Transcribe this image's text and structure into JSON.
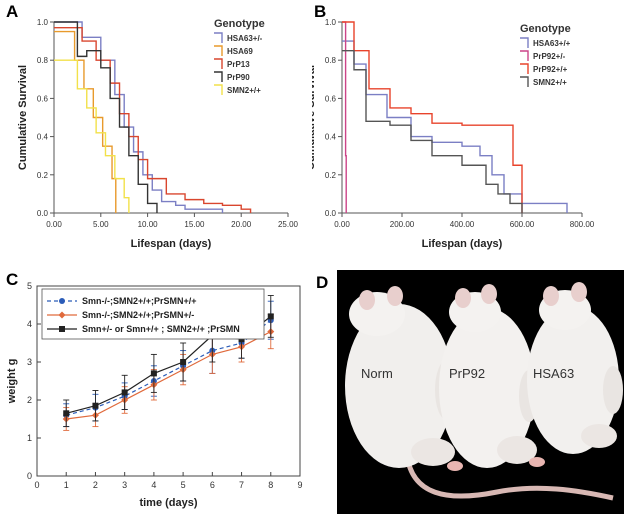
{
  "chart_data": [
    {
      "panel": "A",
      "type": "line",
      "step": true,
      "ylabel": "Cumulative Survival",
      "xlabel": "Lifespan (days)",
      "xlim": [
        0,
        25
      ],
      "ylim": [
        0,
        1.0
      ],
      "xticks": [
        "0.00",
        "5.00",
        "10.00",
        "15.00",
        "20.00",
        "25.00"
      ],
      "yticks": [
        "0.0",
        "0.2",
        "0.4",
        "0.6",
        "0.8",
        "1.0"
      ],
      "legend_title": "Genotype",
      "legend_position": "top-right",
      "series": [
        {
          "name": "HSA63+/-",
          "color": "#7b7fc4",
          "x": [
            0,
            1.8,
            3.0,
            5.0,
            6.5,
            7.5,
            8.5,
            9.5,
            10.5,
            11.5,
            13,
            14,
            18
          ],
          "y": [
            1.0,
            1.0,
            0.92,
            0.8,
            0.62,
            0.45,
            0.32,
            0.2,
            0.12,
            0.06,
            0.04,
            0.02,
            0.0
          ]
        },
        {
          "name": "HSA69",
          "color": "#e89a2c",
          "x": [
            0,
            1.2,
            2.2,
            3.2,
            4.2,
            5.2,
            6.2,
            6.6
          ],
          "y": [
            0.95,
            0.95,
            0.8,
            0.65,
            0.5,
            0.35,
            0.18,
            0.0
          ]
        },
        {
          "name": "PrP13",
          "color": "#d9462e",
          "x": [
            0,
            1.5,
            3,
            4.5,
            6,
            7,
            8,
            9,
            10,
            12,
            14,
            16,
            18,
            20,
            21
          ],
          "y": [
            0.97,
            0.97,
            0.9,
            0.8,
            0.68,
            0.52,
            0.4,
            0.28,
            0.18,
            0.1,
            0.07,
            0.05,
            0.04,
            0.02,
            0.0
          ]
        },
        {
          "name": "PrP90",
          "color": "#333333",
          "x": [
            0,
            1.5,
            2.5,
            3.5,
            5,
            6,
            7,
            8,
            9,
            10,
            11
          ],
          "y": [
            1.0,
            1.0,
            0.82,
            0.85,
            0.76,
            0.6,
            0.45,
            0.3,
            0.15,
            0.05,
            0.0
          ]
        },
        {
          "name": "SMN2+/+",
          "color": "#f2e14a",
          "x": [
            0,
            1.2,
            2.5,
            3.5,
            4.5,
            5.5,
            6.5,
            7.5,
            8
          ],
          "y": [
            0.8,
            0.8,
            0.65,
            0.55,
            0.42,
            0.3,
            0.18,
            0.08,
            0.0
          ]
        }
      ]
    },
    {
      "panel": "B",
      "type": "line",
      "step": true,
      "ylabel": "Cumulative Survival",
      "xlabel": "Lifespan (days)",
      "xlim": [
        0,
        800
      ],
      "ylim": [
        0,
        1.0
      ],
      "xticks": [
        "0.00",
        "200.00",
        "400.00",
        "600.00",
        "800.00"
      ],
      "yticks": [
        "0.0",
        "0.2",
        "0.4",
        "0.6",
        "0.8",
        "1.0"
      ],
      "legend_title": "Genotype",
      "legend_position": "top-right",
      "series": [
        {
          "name": "HSA63+/+",
          "color": "#7b7fc4",
          "x": [
            0,
            15,
            40,
            80,
            150,
            230,
            300,
            400,
            460,
            500,
            540,
            600,
            650,
            750
          ],
          "y": [
            0.9,
            0.9,
            0.78,
            0.62,
            0.5,
            0.4,
            0.37,
            0.35,
            0.3,
            0.2,
            0.1,
            0.05,
            0.05,
            0.0
          ]
        },
        {
          "name": "PrP92+/-",
          "color": "#cc4488",
          "x": [
            0,
            10,
            12,
            14
          ],
          "y": [
            1.0,
            1.0,
            0.3,
            0.0
          ]
        },
        {
          "name": "PrP92+/+",
          "color": "#e8432b",
          "x": [
            0,
            15,
            40,
            90,
            160,
            230,
            300,
            400,
            540,
            570,
            600
          ],
          "y": [
            1.0,
            1.0,
            0.85,
            0.65,
            0.55,
            0.52,
            0.47,
            0.46,
            0.46,
            0.25,
            0.0
          ]
        },
        {
          "name": "SMN2+/+",
          "color": "#555555",
          "x": [
            0,
            15,
            40,
            80,
            160,
            230,
            300,
            400,
            480,
            520,
            560,
            600
          ],
          "y": [
            0.85,
            0.85,
            0.75,
            0.48,
            0.46,
            0.38,
            0.3,
            0.25,
            0.15,
            0.1,
            0.05,
            0.0
          ]
        }
      ]
    },
    {
      "panel": "C",
      "type": "line",
      "ylabel": "weight g",
      "xlabel": "time (days)",
      "xlim": [
        0,
        9
      ],
      "ylim": [
        0,
        5
      ],
      "xticks": [
        "0",
        "1",
        "2",
        "3",
        "4",
        "5",
        "6",
        "7",
        "8",
        "9"
      ],
      "yticks": [
        "0",
        "1",
        "2",
        "3",
        "4",
        "5"
      ],
      "legend_position": "top-left",
      "series": [
        {
          "name": "Smn-/-;SMN2+/+;PrSMN+/+",
          "color": "#2b5cb8",
          "marker": "circle",
          "dash": true,
          "x": [
            1,
            2,
            3,
            4,
            5,
            6,
            7,
            8
          ],
          "y": [
            1.6,
            1.8,
            2.1,
            2.5,
            2.9,
            3.3,
            3.5,
            4.1
          ],
          "err": [
            0.3,
            0.35,
            0.35,
            0.4,
            0.4,
            0.6,
            0.4,
            0.5
          ]
        },
        {
          "name": "Smn-/-;SMN2+/+;PrSMN+/-",
          "color": "#e06a3c",
          "marker": "diamond",
          "dash": false,
          "x": [
            1,
            2,
            3,
            4,
            5,
            6,
            7,
            8
          ],
          "y": [
            1.5,
            1.6,
            2.0,
            2.4,
            2.8,
            3.2,
            3.4,
            3.8
          ],
          "err": [
            0.3,
            0.3,
            0.35,
            0.4,
            0.4,
            0.5,
            0.4,
            0.45
          ]
        },
        {
          "name": "Smn+/- or Smn+/+ ; SMN2+/+ ;PrSMN",
          "color": "#222222",
          "marker": "square",
          "dash": false,
          "x": [
            1,
            2,
            3,
            4,
            5,
            6,
            7,
            8
          ],
          "y": [
            1.65,
            1.85,
            2.2,
            2.7,
            3.0,
            3.7,
            3.6,
            4.2
          ],
          "err": [
            0.35,
            0.4,
            0.45,
            0.5,
            0.5,
            0.7,
            0.5,
            0.55
          ]
        }
      ]
    }
  ],
  "panel_labels": {
    "a": "A",
    "b": "B",
    "c": "C",
    "d": "D"
  },
  "photo": {
    "mice": [
      "Norm",
      "PrP92",
      "HSA63"
    ]
  }
}
